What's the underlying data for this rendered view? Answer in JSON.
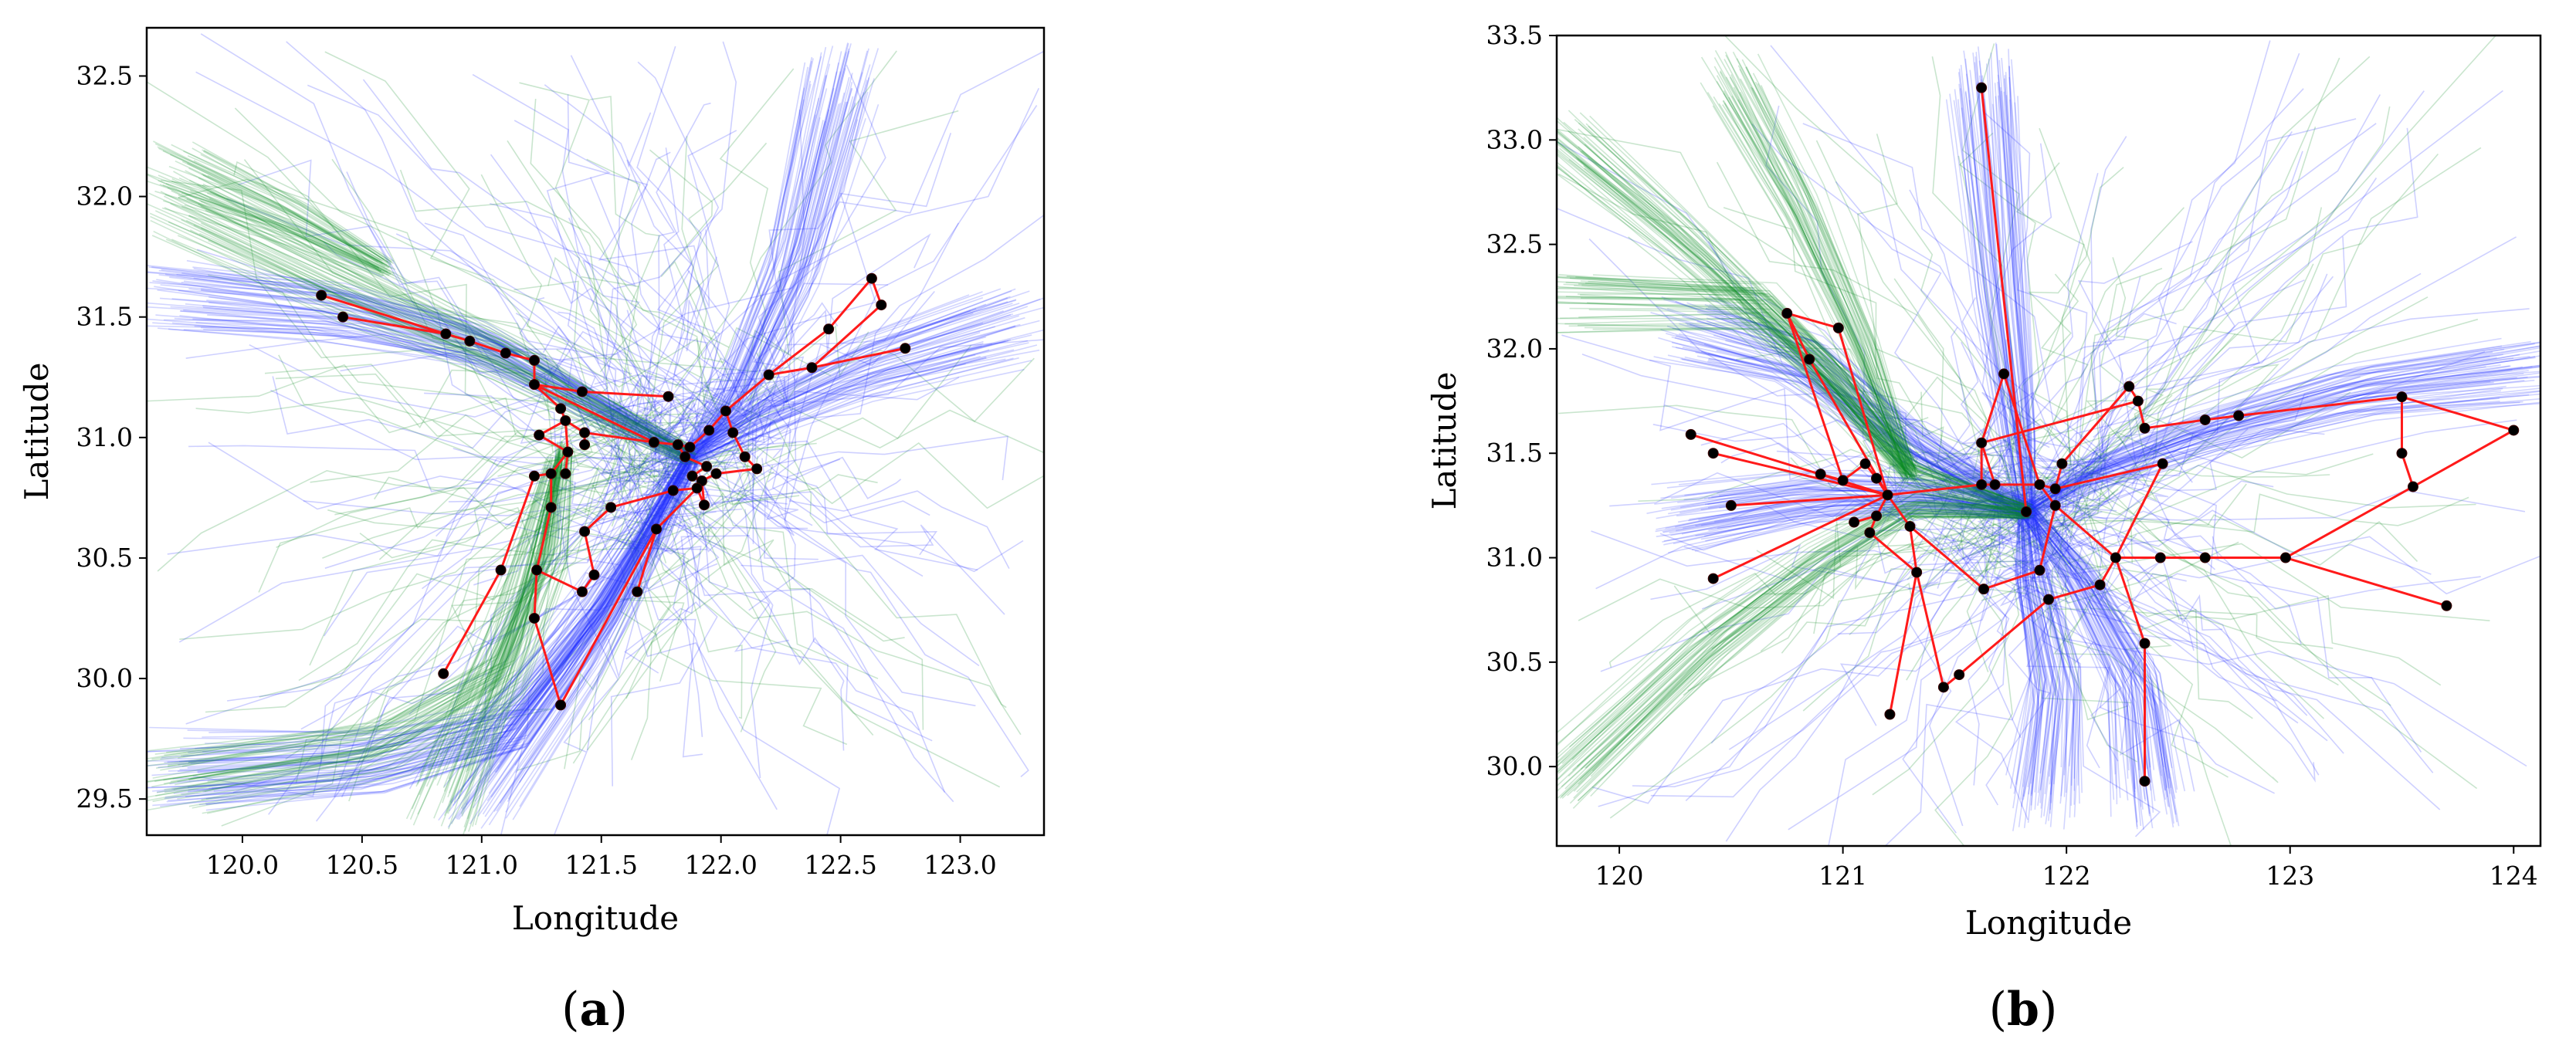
{
  "colors": {
    "blue": "#1f2bff",
    "green": "#0a8a22",
    "red": "#ff1a1a",
    "point": "#000000"
  },
  "chart_data": [
    {
      "type": "line",
      "panel_label": "a",
      "xlabel": "Longitude",
      "ylabel": "Latitude",
      "xlim": [
        119.6,
        123.35
      ],
      "ylim": [
        29.35,
        32.7
      ],
      "xticks": [
        "120.0",
        "120.5",
        "121.0",
        "121.5",
        "122.0",
        "122.5",
        "123.0"
      ],
      "yticks": [
        "29.5",
        "30.0",
        "30.5",
        "31.0",
        "31.5",
        "32.0",
        "32.5"
      ],
      "hub": [
        121.87,
        30.92
      ],
      "series": [
        {
          "name": "trajectories (blue)",
          "color": "#1f2bff"
        },
        {
          "name": "trajectories (green)",
          "color": "#0a8a22"
        },
        {
          "name": "route network (red)",
          "color": "#ff1a1a"
        }
      ],
      "blue_corridors": [
        [
          [
            119.72,
            31.58
          ],
          [
            120.4,
            31.52
          ],
          [
            121.0,
            31.38
          ],
          [
            121.4,
            31.18
          ],
          [
            121.87,
            30.92
          ]
        ],
        [
          [
            121.0,
            29.55
          ],
          [
            121.4,
            30.1
          ],
          [
            121.7,
            30.6
          ],
          [
            121.87,
            30.92
          ]
        ],
        [
          [
            122.5,
            32.48
          ],
          [
            122.3,
            31.7
          ],
          [
            122.05,
            31.15
          ],
          [
            121.87,
            30.92
          ]
        ],
        [
          [
            123.2,
            31.45
          ],
          [
            122.6,
            31.28
          ],
          [
            122.2,
            31.1
          ],
          [
            121.87,
            30.92
          ]
        ],
        [
          [
            119.72,
            29.62
          ],
          [
            120.5,
            29.66
          ],
          [
            121.1,
            29.8
          ],
          [
            121.5,
            30.3
          ],
          [
            121.87,
            30.92
          ]
        ]
      ],
      "green_corridors": [
        [
          [
            119.72,
            31.95
          ],
          [
            120.5,
            31.58
          ],
          [
            121.1,
            31.32
          ],
          [
            121.4,
            31.15
          ],
          [
            121.87,
            30.92
          ]
        ],
        [
          [
            119.72,
            29.55
          ],
          [
            120.6,
            29.7
          ],
          [
            121.1,
            30.0
          ],
          [
            121.3,
            30.5
          ],
          [
            121.35,
            30.95
          ]
        ],
        [
          [
            120.82,
            29.5
          ],
          [
            121.1,
            30.2
          ],
          [
            121.3,
            30.9
          ]
        ],
        [
          [
            119.72,
            32.1
          ],
          [
            120.2,
            31.9
          ],
          [
            120.6,
            31.7
          ]
        ]
      ],
      "nodes": [
        [
          120.33,
          31.59
        ],
        [
          120.42,
          31.5
        ],
        [
          120.85,
          31.43
        ],
        [
          120.95,
          31.4
        ],
        [
          121.1,
          31.35
        ],
        [
          121.22,
          31.32
        ],
        [
          121.22,
          31.22
        ],
        [
          121.42,
          31.19
        ],
        [
          121.78,
          31.17
        ],
        [
          121.33,
          31.12
        ],
        [
          121.35,
          31.07
        ],
        [
          121.24,
          31.01
        ],
        [
          121.43,
          31.02
        ],
        [
          121.43,
          30.97
        ],
        [
          121.36,
          30.94
        ],
        [
          121.29,
          30.85
        ],
        [
          121.35,
          30.85
        ],
        [
          121.22,
          30.84
        ],
        [
          121.29,
          30.71
        ],
        [
          121.54,
          30.71
        ],
        [
          121.43,
          30.61
        ],
        [
          121.08,
          30.45
        ],
        [
          121.23,
          30.45
        ],
        [
          121.47,
          30.43
        ],
        [
          121.42,
          30.36
        ],
        [
          121.65,
          30.36
        ],
        [
          121.22,
          30.25
        ],
        [
          120.84,
          30.02
        ],
        [
          121.33,
          29.89
        ],
        [
          121.72,
          30.98
        ],
        [
          121.82,
          30.97
        ],
        [
          121.87,
          30.96
        ],
        [
          121.95,
          31.03
        ],
        [
          122.02,
          31.11
        ],
        [
          122.05,
          31.02
        ],
        [
          121.85,
          30.92
        ],
        [
          121.94,
          30.88
        ],
        [
          121.88,
          30.84
        ],
        [
          121.92,
          30.82
        ],
        [
          122.1,
          30.92
        ],
        [
          122.15,
          30.87
        ],
        [
          121.98,
          30.85
        ],
        [
          121.8,
          30.78
        ],
        [
          121.93,
          30.72
        ],
        [
          121.73,
          30.62
        ],
        [
          122.2,
          31.26
        ],
        [
          122.38,
          31.29
        ],
        [
          122.45,
          31.45
        ],
        [
          122.63,
          31.66
        ],
        [
          122.67,
          31.55
        ],
        [
          122.77,
          31.37
        ],
        [
          121.9,
          30.79
        ]
      ],
      "edges": [
        [
          0,
          2
        ],
        [
          1,
          2
        ],
        [
          2,
          3
        ],
        [
          3,
          4
        ],
        [
          4,
          5
        ],
        [
          5,
          6
        ],
        [
          6,
          7
        ],
        [
          7,
          8
        ],
        [
          6,
          9
        ],
        [
          9,
          10
        ],
        [
          10,
          11
        ],
        [
          10,
          12
        ],
        [
          12,
          13
        ],
        [
          10,
          14
        ],
        [
          14,
          15
        ],
        [
          14,
          16
        ],
        [
          15,
          17
        ],
        [
          15,
          18
        ],
        [
          18,
          22
        ],
        [
          17,
          21
        ],
        [
          21,
          27
        ],
        [
          22,
          26
        ],
        [
          26,
          28
        ],
        [
          28,
          44
        ],
        [
          22,
          24
        ],
        [
          24,
          23
        ],
        [
          23,
          20
        ],
        [
          20,
          19
        ],
        [
          19,
          42
        ],
        [
          25,
          44
        ],
        [
          44,
          51
        ],
        [
          6,
          29
        ],
        [
          29,
          30
        ],
        [
          30,
          31
        ],
        [
          31,
          32
        ],
        [
          32,
          33
        ],
        [
          33,
          45
        ],
        [
          45,
          46
        ],
        [
          46,
          50
        ],
        [
          45,
          47
        ],
        [
          47,
          48
        ],
        [
          48,
          49
        ],
        [
          49,
          46
        ],
        [
          33,
          34
        ],
        [
          34,
          39
        ],
        [
          39,
          40
        ],
        [
          35,
          36
        ],
        [
          36,
          37
        ],
        [
          37,
          38
        ],
        [
          38,
          41
        ],
        [
          41,
          40
        ],
        [
          35,
          30
        ],
        [
          42,
          51
        ],
        [
          51,
          43
        ],
        [
          43,
          38
        ],
        [
          11,
          14
        ],
        [
          12,
          29
        ]
      ]
    },
    {
      "type": "line",
      "panel_label": "b",
      "xlabel": "Longitude",
      "ylabel": "Latitude",
      "xlim": [
        119.72,
        124.12
      ],
      "ylim": [
        29.62,
        33.5
      ],
      "xticks": [
        "120",
        "121",
        "122",
        "123",
        "124"
      ],
      "yticks": [
        "30.0",
        "30.5",
        "31.0",
        "31.5",
        "32.0",
        "32.5",
        "33.0",
        "33.5"
      ],
      "hub": [
        121.82,
        31.22
      ],
      "series": [
        {
          "name": "trajectories (blue)",
          "color": "#1f2bff"
        },
        {
          "name": "trajectories (green)",
          "color": "#0a8a22"
        },
        {
          "name": "route network (red)",
          "color": "#ff1a1a"
        }
      ],
      "blue_corridors": [
        [
          [
            121.62,
            33.3
          ],
          [
            121.7,
            32.3
          ],
          [
            121.78,
            31.6
          ],
          [
            121.82,
            31.22
          ]
        ],
        [
          [
            120.3,
            32.1
          ],
          [
            120.8,
            31.95
          ],
          [
            121.3,
            31.55
          ],
          [
            121.82,
            31.22
          ]
        ],
        [
          [
            124.05,
            31.9
          ],
          [
            123.3,
            31.8
          ],
          [
            122.6,
            31.6
          ],
          [
            122.1,
            31.4
          ],
          [
            121.82,
            31.22
          ]
        ],
        [
          [
            122.35,
            29.85
          ],
          [
            122.3,
            30.4
          ],
          [
            122.05,
            30.9
          ],
          [
            121.82,
            31.22
          ]
        ],
        [
          [
            121.9,
            29.85
          ],
          [
            121.95,
            30.4
          ],
          [
            121.85,
            30.9
          ],
          [
            121.82,
            31.22
          ]
        ],
        [
          [
            120.3,
            31.2
          ],
          [
            120.9,
            31.3
          ],
          [
            121.4,
            31.3
          ],
          [
            121.82,
            31.22
          ]
        ]
      ],
      "green_corridors": [
        [
          [
            119.75,
            29.95
          ],
          [
            120.4,
            30.6
          ],
          [
            120.9,
            31.0
          ],
          [
            121.3,
            31.25
          ],
          [
            121.82,
            31.22
          ]
        ],
        [
          [
            119.75,
            32.22
          ],
          [
            120.6,
            32.2
          ],
          [
            121.0,
            31.8
          ],
          [
            121.3,
            31.4
          ],
          [
            121.82,
            31.22
          ]
        ],
        [
          [
            119.75,
            33.0
          ],
          [
            120.3,
            32.5
          ],
          [
            120.9,
            31.9
          ],
          [
            121.3,
            31.4
          ]
        ],
        [
          [
            120.5,
            33.3
          ],
          [
            120.8,
            32.7
          ],
          [
            121.1,
            32.0
          ],
          [
            121.3,
            31.4
          ]
        ]
      ],
      "nodes": [
        [
          121.62,
          33.25
        ],
        [
          121.72,
          31.88
        ],
        [
          120.75,
          32.17
        ],
        [
          120.98,
          32.1
        ],
        [
          120.85,
          31.95
        ],
        [
          120.32,
          31.59
        ],
        [
          120.42,
          31.5
        ],
        [
          120.5,
          31.25
        ],
        [
          120.9,
          31.4
        ],
        [
          121.0,
          31.37
        ],
        [
          121.1,
          31.45
        ],
        [
          121.15,
          31.38
        ],
        [
          121.2,
          31.3
        ],
        [
          121.15,
          31.2
        ],
        [
          121.05,
          31.17
        ],
        [
          121.12,
          31.12
        ],
        [
          121.3,
          31.15
        ],
        [
          121.33,
          30.93
        ],
        [
          121.45,
          30.38
        ],
        [
          121.52,
          30.44
        ],
        [
          121.21,
          30.25
        ],
        [
          120.42,
          30.9
        ],
        [
          121.62,
          31.55
        ],
        [
          121.62,
          31.35
        ],
        [
          121.68,
          31.35
        ],
        [
          121.88,
          31.35
        ],
        [
          121.95,
          31.33
        ],
        [
          121.98,
          31.45
        ],
        [
          121.95,
          31.25
        ],
        [
          121.88,
          30.94
        ],
        [
          121.63,
          30.85
        ],
        [
          121.92,
          30.8
        ],
        [
          122.15,
          30.87
        ],
        [
          122.22,
          31.0
        ],
        [
          122.35,
          30.59
        ],
        [
          122.35,
          29.93
        ],
        [
          122.28,
          31.82
        ],
        [
          122.32,
          31.75
        ],
        [
          122.35,
          31.62
        ],
        [
          122.43,
          31.45
        ],
        [
          122.42,
          31.0
        ],
        [
          122.62,
          31.0
        ],
        [
          122.98,
          31.0
        ],
        [
          122.62,
          31.66
        ],
        [
          122.77,
          31.68
        ],
        [
          123.5,
          31.77
        ],
        [
          123.5,
          31.5
        ],
        [
          123.55,
          31.34
        ],
        [
          124.0,
          31.61
        ],
        [
          123.7,
          30.77
        ],
        [
          121.82,
          31.22
        ]
      ],
      "edges": [
        [
          0,
          50
        ],
        [
          1,
          25
        ],
        [
          2,
          3
        ],
        [
          2,
          4
        ],
        [
          4,
          12
        ],
        [
          2,
          9
        ],
        [
          3,
          12
        ],
        [
          5,
          12
        ],
        [
          6,
          12
        ],
        [
          7,
          12
        ],
        [
          8,
          9
        ],
        [
          9,
          10
        ],
        [
          10,
          11
        ],
        [
          11,
          12
        ],
        [
          12,
          13
        ],
        [
          13,
          14
        ],
        [
          13,
          15
        ],
        [
          12,
          16
        ],
        [
          16,
          17
        ],
        [
          15,
          17
        ],
        [
          17,
          18
        ],
        [
          18,
          19
        ],
        [
          19,
          31
        ],
        [
          17,
          20
        ],
        [
          12,
          21
        ],
        [
          12,
          23
        ],
        [
          23,
          24
        ],
        [
          24,
          25
        ],
        [
          25,
          26
        ],
        [
          26,
          27
        ],
        [
          27,
          36
        ],
        [
          36,
          37
        ],
        [
          37,
          38
        ],
        [
          38,
          43
        ],
        [
          43,
          44
        ],
        [
          44,
          45
        ],
        [
          45,
          46
        ],
        [
          46,
          47
        ],
        [
          47,
          48
        ],
        [
          45,
          48
        ],
        [
          22,
          23
        ],
        [
          22,
          1
        ],
        [
          25,
          28
        ],
        [
          28,
          29
        ],
        [
          29,
          30
        ],
        [
          30,
          16
        ],
        [
          28,
          33
        ],
        [
          33,
          32
        ],
        [
          32,
          31
        ],
        [
          33,
          40
        ],
        [
          40,
          41
        ],
        [
          41,
          42
        ],
        [
          42,
          49
        ],
        [
          42,
          47
        ],
        [
          33,
          34
        ],
        [
          34,
          35
        ],
        [
          26,
          39
        ],
        [
          39,
          33
        ],
        [
          22,
          37
        ],
        [
          24,
          22
        ]
      ]
    }
  ]
}
